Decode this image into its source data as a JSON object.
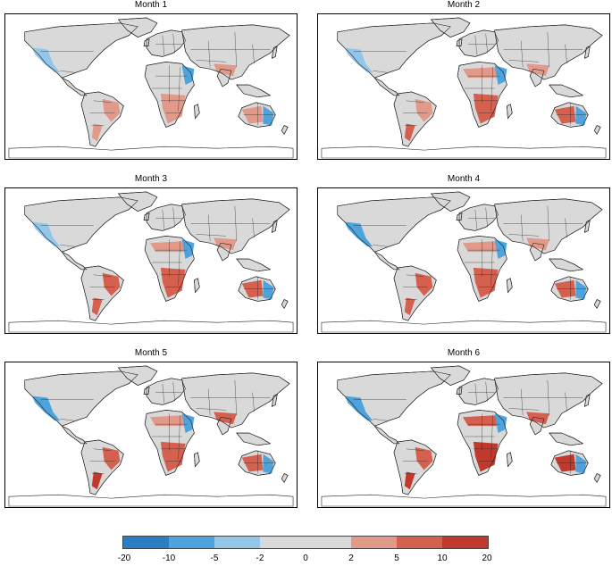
{
  "panels": [
    {
      "title": "Month 1",
      "pattern": [
        -1,
        1,
        1,
        0,
        1,
        -2,
        1,
        1
      ]
    },
    {
      "title": "Month 2",
      "pattern": [
        -1,
        1,
        2,
        1,
        2,
        -2,
        1,
        2
      ]
    },
    {
      "title": "Month 3",
      "pattern": [
        -1,
        2,
        2,
        1,
        2,
        -2,
        1,
        2
      ]
    },
    {
      "title": "Month 4",
      "pattern": [
        -2,
        2,
        2,
        1,
        2,
        -2,
        1,
        2
      ]
    },
    {
      "title": "Month 5",
      "pattern": [
        -2,
        2,
        3,
        1,
        2,
        -2,
        2,
        2
      ]
    },
    {
      "title": "Month 6",
      "pattern": [
        -2,
        2,
        3,
        2,
        3,
        -2,
        2,
        3
      ]
    }
  ],
  "colorbar": {
    "colors": [
      "#2a7fc4",
      "#4ea3dc",
      "#93c6e8",
      "#d9d9d9",
      "#d9d9d9",
      "#e1998a",
      "#d4604f",
      "#c0392b"
    ],
    "ticks": [
      "-20",
      "-10",
      "-5",
      "-2",
      "0",
      "2",
      "5",
      "10",
      "20"
    ]
  }
}
